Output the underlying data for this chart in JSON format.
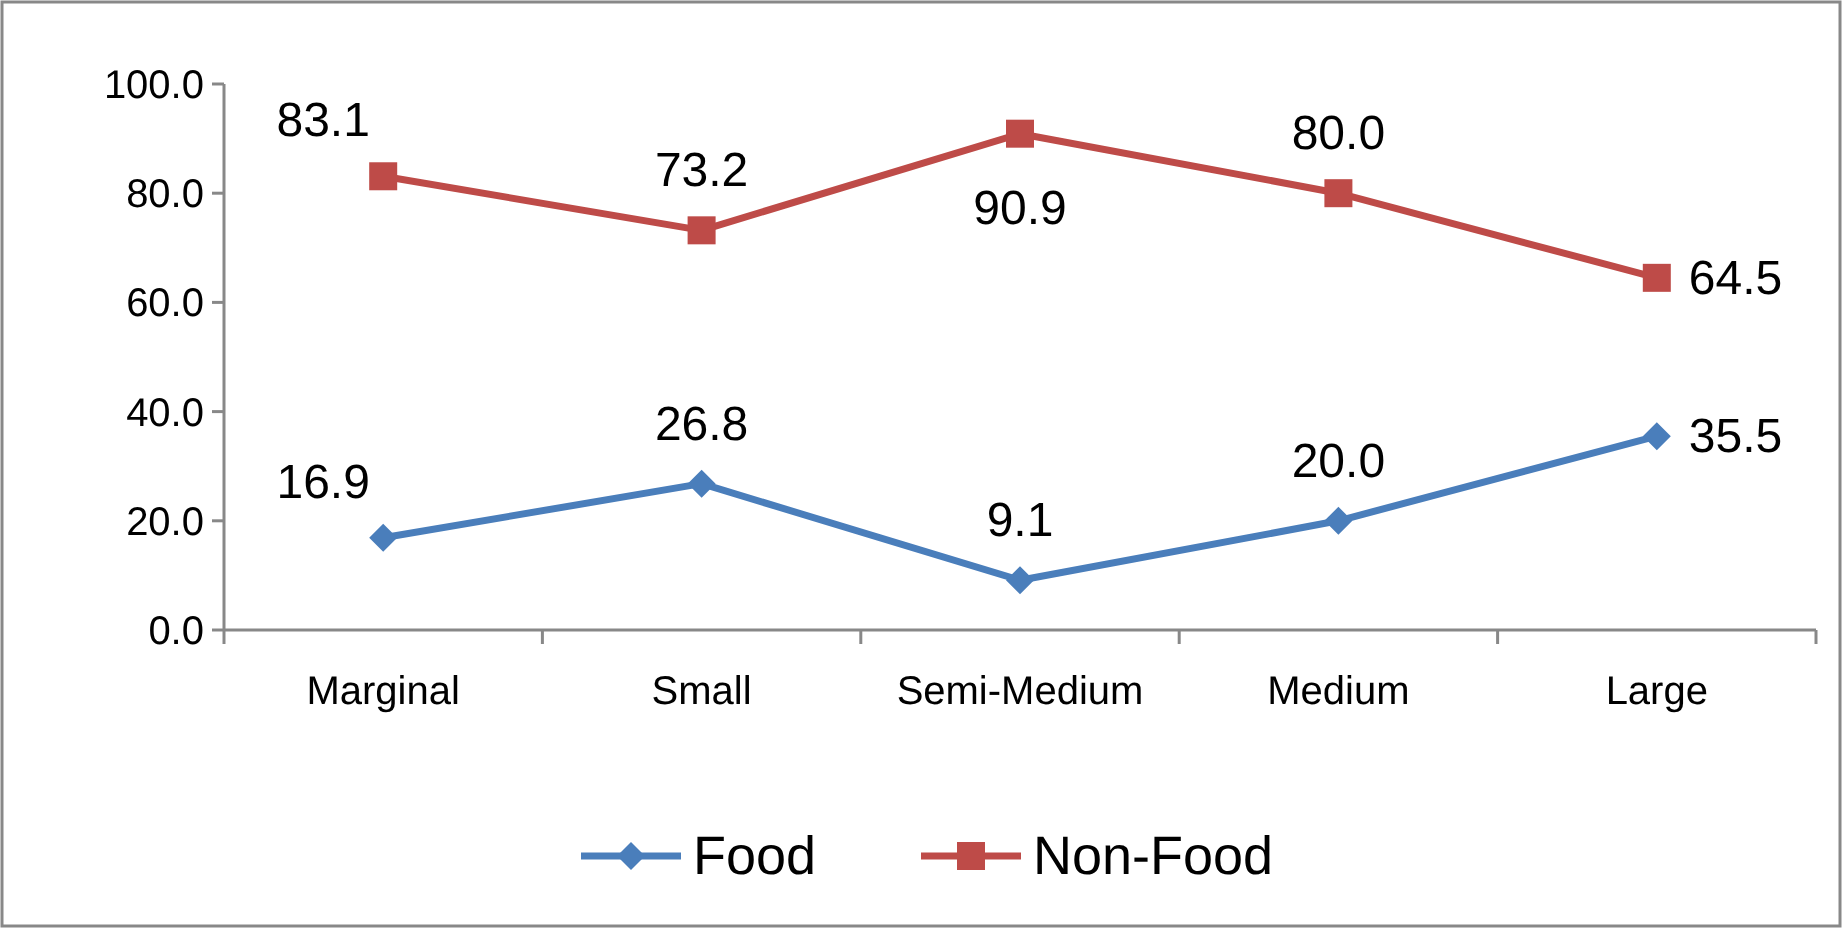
{
  "chart_data": {
    "type": "line",
    "categories": [
      "Marginal",
      "Small",
      "Semi-Medium",
      "Medium",
      "Large"
    ],
    "series": [
      {
        "name": "Food",
        "color": "#4a7ebb",
        "marker": "diamond",
        "values": [
          16.9,
          26.8,
          9.1,
          20.0,
          35.5
        ],
        "value_labels": [
          "16.9",
          "26.8",
          "9.1",
          "20.0",
          "35.5"
        ]
      },
      {
        "name": "Non-Food",
        "color": "#be4b48",
        "marker": "square",
        "values": [
          83.1,
          73.2,
          90.9,
          80.0,
          64.5
        ],
        "value_labels": [
          "83.1",
          "73.2",
          "90.9",
          "80.0",
          "64.5"
        ]
      }
    ],
    "ylim": [
      0,
      100
    ],
    "yticks": [
      {
        "value": 0,
        "label": "0.0"
      },
      {
        "value": 20,
        "label": "20.0"
      },
      {
        "value": 40,
        "label": "40.0"
      },
      {
        "value": 60,
        "label": "60.0"
      },
      {
        "value": 80,
        "label": "80.0"
      },
      {
        "value": 100,
        "label": "100.0"
      }
    ],
    "grid": false,
    "legend": "bottom",
    "line_style": "solid"
  }
}
